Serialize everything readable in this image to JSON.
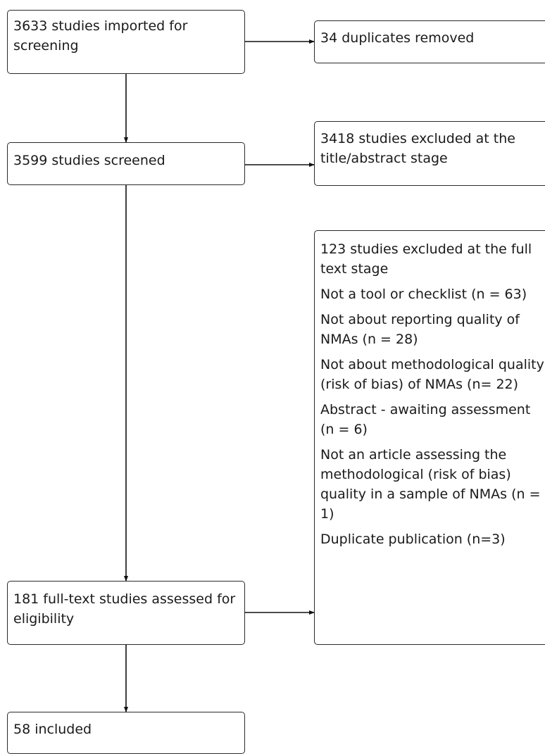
{
  "boxes": {
    "imported": "3633 studies imported for screening",
    "duplicates": "34 duplicates removed",
    "screened": "3599 studies screened",
    "excluded_title": "3418 studies excluded at the title/abstract stage",
    "fulltext": "181 full-text studies assessed for eligibility",
    "included": "58 included"
  },
  "fulltext_exclusions": {
    "heading": "123 studies excluded at the full text stage",
    "reasons": [
      "Not a tool or checklist (n = 63)",
      "Not about reporting quality of NMAs (n = 28)",
      "Not about methodological quality (risk of bias) of NMAs (n= 22)",
      "Abstract - awaiting assessment (n = 6)",
      "Not an article assessing the methodological (risk of bias) quality in a sample of NMAs (n = 1)",
      "Duplicate publication (n=3)"
    ]
  }
}
